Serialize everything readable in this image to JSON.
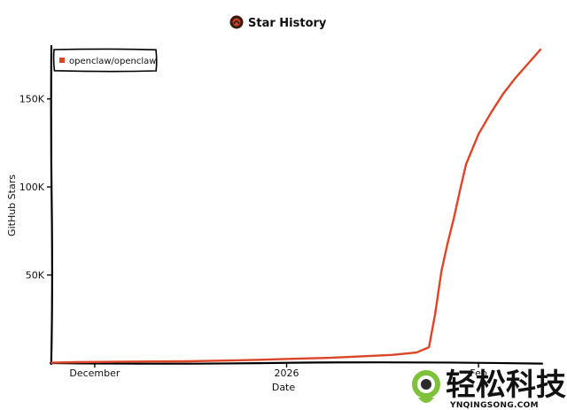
{
  "header": {
    "logo_icon": "star-history-logo-icon",
    "title": "Star History"
  },
  "chart_data": {
    "type": "line",
    "title": "Star History",
    "xlabel": "Date",
    "ylabel": "GitHub Stars",
    "x_ticks": [
      "December",
      "2026",
      "Feb"
    ],
    "x_tick_dates": [
      "2025-12-01",
      "2026-01-01",
      "2026-02-01"
    ],
    "y_ticks": [
      {
        "value": 50000,
        "label": "50K"
      },
      {
        "value": 100000,
        "label": "100K"
      },
      {
        "value": 150000,
        "label": "150K"
      }
    ],
    "ylim": [
      0,
      180000
    ],
    "xlim": [
      "2025-11-24",
      "2026-02-11"
    ],
    "grid": false,
    "legend_position": "top-left",
    "series": [
      {
        "name": "openclaw/openclaw",
        "color": "#dd4528",
        "x": [
          "2025-11-24",
          "2025-11-28",
          "2025-12-04",
          "2025-12-10",
          "2025-12-16",
          "2025-12-22",
          "2025-12-27",
          "2026-01-02",
          "2026-01-08",
          "2026-01-13",
          "2026-01-18",
          "2026-01-22",
          "2026-01-24",
          "2026-01-25",
          "2026-01-26",
          "2026-01-27",
          "2026-01-28",
          "2026-01-29",
          "2026-01-30",
          "2026-02-01",
          "2026-02-03",
          "2026-02-05",
          "2026-02-07",
          "2026-02-09",
          "2026-02-11"
        ],
        "y": [
          200,
          500,
          700,
          900,
          1000,
          1400,
          1800,
          2400,
          3000,
          3800,
          4600,
          6000,
          9000,
          28000,
          52000,
          68000,
          82000,
          98000,
          113000,
          130000,
          142000,
          153000,
          162000,
          170000,
          178000
        ]
      }
    ]
  },
  "watermark": {
    "name": "轻松科技",
    "domain": "YNQINGSONG.COM",
    "color": "#77b92e"
  }
}
